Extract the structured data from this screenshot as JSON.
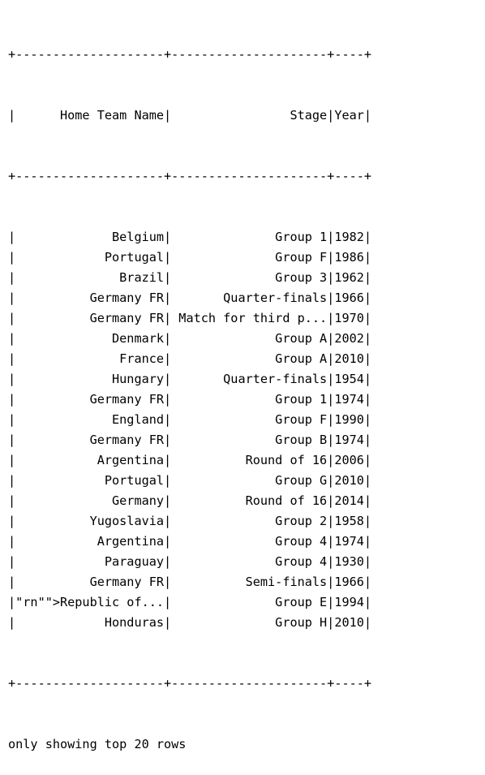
{
  "output": {
    "border": "+--------------------+---------------------+----+",
    "header": {
      "home_team_name": "Home Team Name",
      "stage": "Stage",
      "year": "Year"
    },
    "rows": [
      {
        "home_team_name": "Belgium",
        "stage": "Group 1",
        "year": "1982"
      },
      {
        "home_team_name": "Portugal",
        "stage": "Group F",
        "year": "1986"
      },
      {
        "home_team_name": "Brazil",
        "stage": "Group 3",
        "year": "1962"
      },
      {
        "home_team_name": "Germany FR",
        "stage": "Quarter-finals",
        "year": "1966"
      },
      {
        "home_team_name": "Germany FR",
        "stage": "Match for third p...",
        "year": "1970"
      },
      {
        "home_team_name": "Denmark",
        "stage": "Group A",
        "year": "2002"
      },
      {
        "home_team_name": "France",
        "stage": "Group A",
        "year": "2010"
      },
      {
        "home_team_name": "Hungary",
        "stage": "Quarter-finals",
        "year": "1954"
      },
      {
        "home_team_name": "Germany FR",
        "stage": "Group 1",
        "year": "1974"
      },
      {
        "home_team_name": "England",
        "stage": "Group F",
        "year": "1990"
      },
      {
        "home_team_name": "Germany FR",
        "stage": "Group B",
        "year": "1974"
      },
      {
        "home_team_name": "Argentina",
        "stage": "Round of 16",
        "year": "2006"
      },
      {
        "home_team_name": "Portugal",
        "stage": "Group G",
        "year": "2010"
      },
      {
        "home_team_name": "Germany",
        "stage": "Round of 16",
        "year": "2014"
      },
      {
        "home_team_name": "Yugoslavia",
        "stage": "Group 2",
        "year": "1958"
      },
      {
        "home_team_name": "Argentina",
        "stage": "Group 4",
        "year": "1974"
      },
      {
        "home_team_name": "Paraguay",
        "stage": "Group 4",
        "year": "1930"
      },
      {
        "home_team_name": "Germany FR",
        "stage": "Semi-finals",
        "year": "1966"
      },
      {
        "home_team_name": "\"rn\"\">Republic of...",
        "stage": "Group E",
        "year": "1994"
      },
      {
        "home_team_name": "Honduras",
        "stage": "Group H",
        "year": "2010"
      }
    ],
    "footer": "only showing top 20 rows"
  }
}
